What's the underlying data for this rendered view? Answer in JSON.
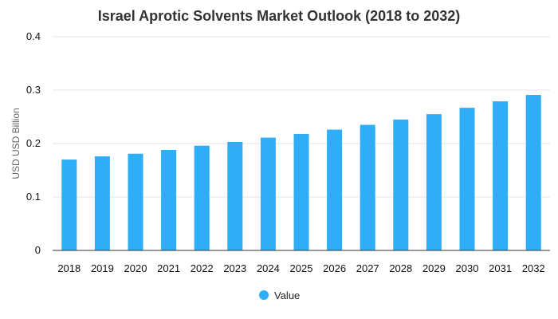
{
  "chart_data": {
    "type": "bar",
    "title": "Israel Aprotic Solvents Market Outlook (2018 to 2032)",
    "xlabel": "",
    "ylabel": "USD USD Billion",
    "categories": [
      "2018",
      "2019",
      "2020",
      "2021",
      "2022",
      "2023",
      "2024",
      "2025",
      "2026",
      "2027",
      "2028",
      "2029",
      "2030",
      "2031",
      "2032"
    ],
    "series": [
      {
        "name": "Value",
        "color": "#2EAEF6",
        "values": [
          0.17,
          0.176,
          0.181,
          0.188,
          0.196,
          0.203,
          0.211,
          0.218,
          0.226,
          0.235,
          0.245,
          0.255,
          0.267,
          0.279,
          0.291
        ]
      }
    ],
    "ylim": [
      0,
      0.4
    ],
    "yticks": [
      "0",
      "0.1",
      "0.2",
      "0.3",
      "0.4"
    ],
    "grid": true,
    "legend_position": "bottom-center"
  }
}
